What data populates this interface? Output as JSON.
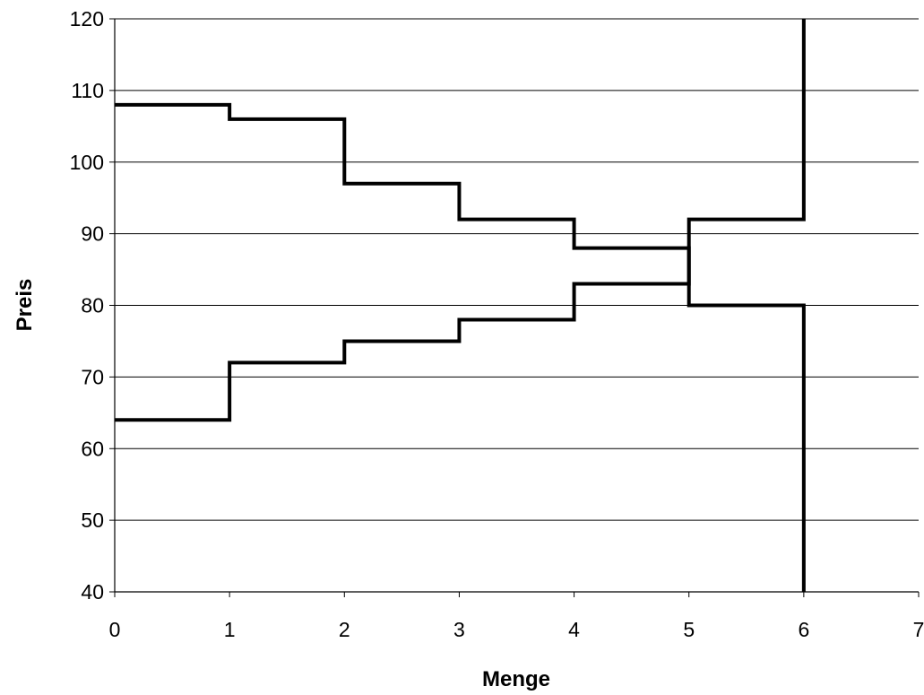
{
  "chart_data": {
    "type": "line",
    "title": "",
    "xlabel": "Menge",
    "ylabel": "Preis",
    "xlim": [
      0,
      7
    ],
    "ylim": [
      40,
      120
    ],
    "x_ticks": [
      0,
      1,
      2,
      3,
      4,
      5,
      6,
      7
    ],
    "y_ticks": [
      40,
      50,
      60,
      70,
      80,
      90,
      100,
      110,
      120
    ],
    "grid": "horizontal",
    "legend": "none",
    "line_color": "#000000",
    "series": [
      {
        "step": "post",
        "points": [
          [
            0,
            108
          ],
          [
            1,
            106
          ],
          [
            2,
            97
          ],
          [
            3,
            92
          ],
          [
            4,
            88
          ],
          [
            5,
            80
          ],
          [
            6,
            40
          ]
        ]
      },
      {
        "step": "post",
        "points": [
          [
            0,
            64
          ],
          [
            1,
            72
          ],
          [
            2,
            75
          ],
          [
            3,
            78
          ],
          [
            4,
            83
          ],
          [
            5,
            92
          ],
          [
            6,
            120
          ]
        ]
      }
    ]
  }
}
